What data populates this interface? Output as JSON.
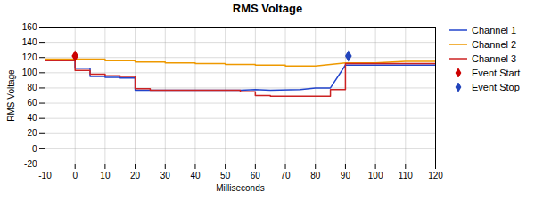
{
  "chart_data": {
    "type": "line",
    "title": "RMS Voltage",
    "xlabel": "Milliseconds",
    "ylabel": "RMS Voltage",
    "xlim": [
      -10,
      120
    ],
    "ylim": [
      -20,
      160
    ],
    "xticks": [
      -10,
      0,
      10,
      20,
      30,
      40,
      50,
      60,
      70,
      80,
      90,
      100,
      110,
      120
    ],
    "yticks": [
      -20,
      0,
      20,
      40,
      60,
      80,
      100,
      120,
      140,
      160
    ],
    "grid": true,
    "legend": "upper right",
    "series": [
      {
        "name": "Channel 1",
        "type": "line",
        "color": "#2244cc",
        "x": [
          -10,
          0,
          0,
          5,
          5,
          10,
          10,
          15,
          15,
          20,
          20,
          55,
          55,
          60,
          60,
          65,
          65,
          75,
          75,
          80,
          80,
          85,
          85,
          90,
          90,
          120
        ],
        "values": [
          117,
          117,
          106,
          106,
          95,
          95,
          94,
          94,
          93,
          93,
          77,
          77,
          77,
          78,
          78,
          77,
          77,
          78,
          78,
          80,
          80,
          80,
          80,
          110,
          110,
          110
        ]
      },
      {
        "name": "Channel 2",
        "type": "line",
        "color": "#ee9900",
        "x": [
          -10,
          0,
          0,
          10,
          10,
          20,
          20,
          30,
          30,
          40,
          40,
          50,
          50,
          60,
          60,
          70,
          70,
          80,
          80,
          90,
          90,
          100,
          100,
          110,
          110,
          120
        ],
        "values": [
          118,
          118,
          118,
          118,
          116,
          116,
          114,
          114,
          113,
          113,
          112,
          112,
          111,
          111,
          110,
          110,
          109,
          109,
          109,
          113,
          113,
          113,
          113,
          115,
          115,
          115
        ]
      },
      {
        "name": "Channel 3",
        "type": "line",
        "color": "#cc2222",
        "x": [
          -10,
          0,
          0,
          5,
          5,
          10,
          10,
          15,
          15,
          20,
          20,
          25,
          25,
          55,
          55,
          60,
          60,
          65,
          65,
          85,
          85,
          90,
          90,
          120
        ],
        "values": [
          116,
          116,
          103,
          103,
          98,
          98,
          96,
          96,
          95,
          95,
          79,
          79,
          77,
          77,
          75,
          75,
          70,
          70,
          69,
          69,
          78,
          78,
          112,
          112
        ]
      },
      {
        "name": "Event Start",
        "type": "scatter",
        "marker": "diamond",
        "color": "#cc0000",
        "x": [
          0
        ],
        "values": [
          122
        ]
      },
      {
        "name": "Event Stop",
        "type": "scatter",
        "marker": "diamond",
        "color": "#2244bb",
        "x": [
          91
        ],
        "values": [
          122
        ]
      }
    ]
  }
}
